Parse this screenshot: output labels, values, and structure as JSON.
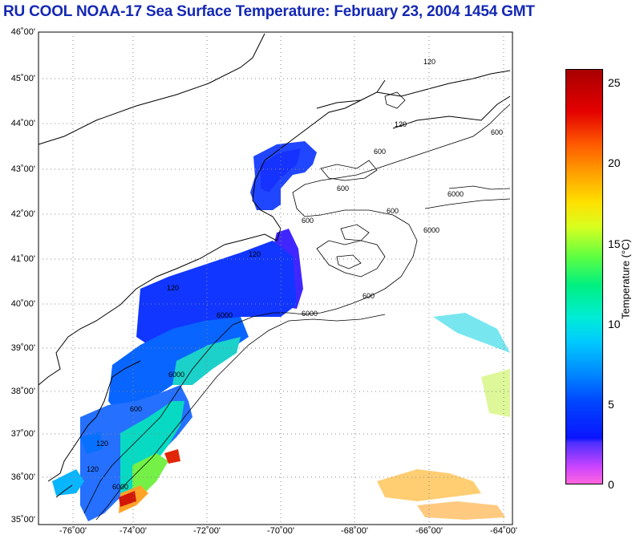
{
  "title": "RU COOL  NOAA-17  Sea Surface Temperature:  February 23, 2004 1454 GMT",
  "map": {
    "lat_labels": [
      "46˚00'",
      "45˚00'",
      "44˚00'",
      "43˚00'",
      "42˚00'",
      "41˚00'",
      "40˚00'",
      "39˚00'",
      "38˚00'",
      "37˚00'",
      "36˚00'",
      "35˚00'"
    ],
    "lon_labels": [
      "-76˚00'",
      "-74˚00'",
      "-72˚00'",
      "-70˚00'",
      "-68˚00'",
      "-66˚00'",
      "-64˚00'"
    ],
    "isobath_labels": [
      "120",
      "120",
      "600",
      "600",
      "600",
      "6000",
      "600",
      "600",
      "6000",
      "120",
      "120",
      "6000",
      "600",
      "6000",
      "600",
      "6000",
      "120",
      "6000",
      "120"
    ]
  },
  "colorbar": {
    "label": "Temperature (°C)",
    "ticks": [
      "25",
      "20",
      "15",
      "10",
      "5",
      "0"
    ],
    "min": 0,
    "max": 26,
    "colors": [
      "#ff66dd",
      "#cc44ff",
      "#0a14ff",
      "#008cff",
      "#00ecd8",
      "#60ff40",
      "#ffe000",
      "#ff5a00",
      "#a80000"
    ]
  }
}
